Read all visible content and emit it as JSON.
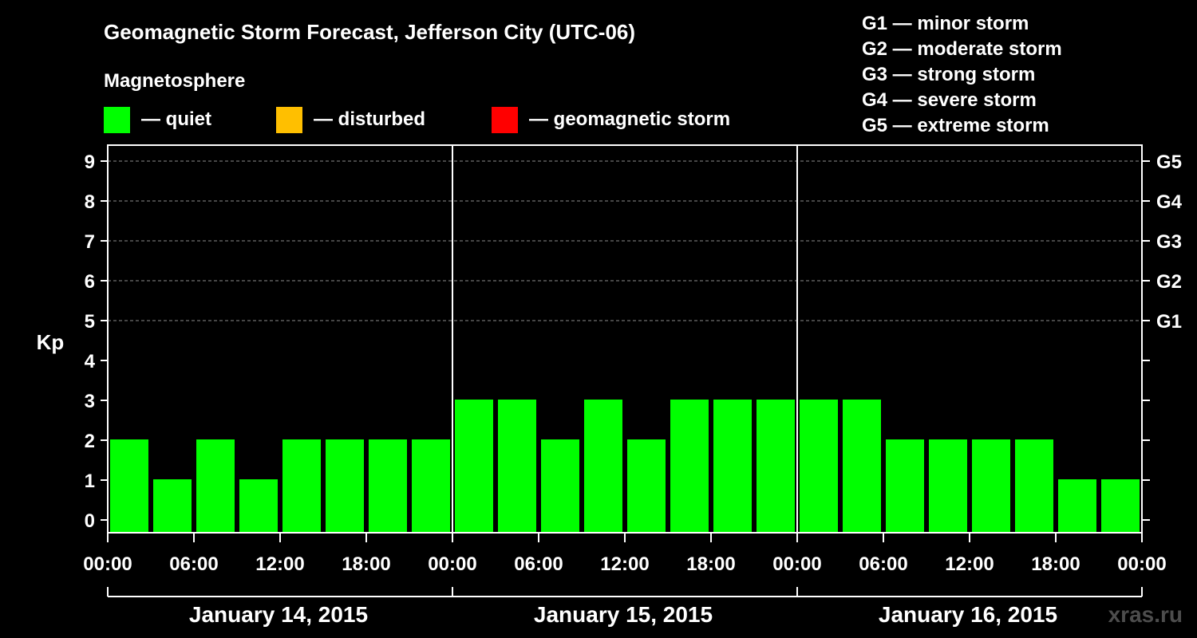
{
  "title": "Geomagnetic Storm Forecast, Jefferson City (UTC-06)",
  "subtitle": "Magnetosphere",
  "legend": {
    "quiet": "— quiet",
    "disturbed": "— disturbed",
    "storm": "— geomagnetic storm"
  },
  "storm_scale": [
    "G1 — minor storm",
    "G2 — moderate storm",
    "G3 — strong storm",
    "G4 — severe storm",
    "G5 — extreme storm"
  ],
  "watermark": "xras.ru",
  "colors": {
    "background": "#000000",
    "quiet": "#00ff00",
    "disturbed": "#ffbf00",
    "storm": "#ff0000",
    "axis": "#ffffff",
    "grid": "#8c8c8c"
  },
  "chart_data": {
    "type": "bar",
    "ylabel": "Kp",
    "ylim": [
      0,
      9
    ],
    "yticks": [
      "0",
      "1",
      "2",
      "3",
      "4",
      "5",
      "6",
      "7",
      "8",
      "9"
    ],
    "right_ticks": [
      {
        "value": 5,
        "label": "G1"
      },
      {
        "value": 6,
        "label": "G2"
      },
      {
        "value": 7,
        "label": "G3"
      },
      {
        "value": 8,
        "label": "G4"
      },
      {
        "value": 9,
        "label": "G5"
      }
    ],
    "gridlines": [
      5,
      6,
      7,
      8,
      9
    ],
    "xtick_labels": [
      "00:00",
      "06:00",
      "12:00",
      "18:00",
      "00:00",
      "06:00",
      "12:00",
      "18:00",
      "00:00",
      "06:00",
      "12:00",
      "18:00",
      "00:00"
    ],
    "days": [
      "January 14, 2015",
      "January 15, 2015",
      "January 16, 2015"
    ],
    "interval_hours": 3,
    "values": [
      2,
      1,
      2,
      1,
      2,
      2,
      2,
      2,
      3,
      3,
      2,
      3,
      2,
      3,
      3,
      3,
      3,
      3,
      2,
      2,
      2,
      2,
      1,
      1
    ],
    "levels": [
      "quiet",
      "quiet",
      "quiet",
      "quiet",
      "quiet",
      "quiet",
      "quiet",
      "quiet",
      "quiet",
      "quiet",
      "quiet",
      "quiet",
      "quiet",
      "quiet",
      "quiet",
      "quiet",
      "quiet",
      "quiet",
      "quiet",
      "quiet",
      "quiet",
      "quiet",
      "quiet",
      "quiet"
    ]
  }
}
